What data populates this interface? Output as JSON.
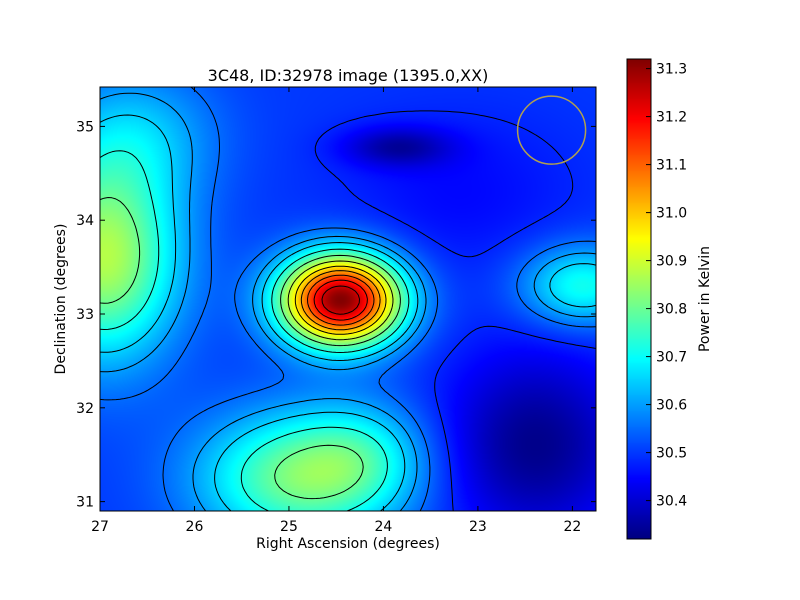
{
  "chart_data": {
    "type": "heatmap",
    "title": "3C48, ID:32978 image (1395.0,XX)",
    "xlabel": "Right Ascension (degrees)",
    "ylabel": "Declination (degrees)",
    "colorbar_label": "Power in Kelvin",
    "xlim": [
      27.0,
      21.75
    ],
    "ylim": [
      30.9,
      35.42
    ],
    "x_ticks": [
      {
        "value": 27,
        "label": "27"
      },
      {
        "value": 26,
        "label": "26"
      },
      {
        "value": 25,
        "label": "25"
      },
      {
        "value": 24,
        "label": "24"
      },
      {
        "value": 23,
        "label": "23"
      },
      {
        "value": 22,
        "label": "22"
      }
    ],
    "y_ticks": [
      {
        "value": 31,
        "label": "31"
      },
      {
        "value": 32,
        "label": "32"
      },
      {
        "value": 33,
        "label": "33"
      },
      {
        "value": 34,
        "label": "34"
      },
      {
        "value": 35,
        "label": "35"
      }
    ],
    "colorbar_range": [
      30.32,
      31.32
    ],
    "colorbar_ticks": [
      {
        "value": 30.4,
        "label": "30.4"
      },
      {
        "value": 30.5,
        "label": "30.5"
      },
      {
        "value": 30.6,
        "label": "30.6"
      },
      {
        "value": 30.7,
        "label": "30.7"
      },
      {
        "value": 30.8,
        "label": "30.8"
      },
      {
        "value": 30.9,
        "label": "30.9"
      },
      {
        "value": 31.0,
        "label": "31.0"
      },
      {
        "value": 31.1,
        "label": "31.1"
      },
      {
        "value": 31.2,
        "label": "31.2"
      },
      {
        "value": 31.3,
        "label": "31.3"
      }
    ],
    "colormap": "jet",
    "background_level": 30.5,
    "features": [
      {
        "name": "peak",
        "ra": 24.45,
        "dec": 33.15,
        "amplitude": 0.82,
        "sigma_ra": 0.45,
        "sigma_dec": 0.34
      },
      {
        "name": "west-lobe",
        "ra": 26.95,
        "dec": 33.6,
        "amplitude": 0.37,
        "sigma_ra": 0.55,
        "sigma_dec": 0.75
      },
      {
        "name": "south-lobe",
        "ra": 24.9,
        "dec": 31.25,
        "amplitude": 0.3,
        "sigma_ra": 0.75,
        "sigma_dec": 0.5
      },
      {
        "name": "south-lobe-2",
        "ra": 24.2,
        "dec": 31.5,
        "amplitude": 0.12,
        "sigma_ra": 0.5,
        "sigma_dec": 0.4
      },
      {
        "name": "east-knot",
        "ra": 21.9,
        "dec": 33.3,
        "amplitude": 0.22,
        "sigma_ra": 0.45,
        "sigma_dec": 0.3
      },
      {
        "name": "north-bridge",
        "ra": 26.6,
        "dec": 34.9,
        "amplitude": 0.12,
        "sigma_ra": 0.6,
        "sigma_dec": 0.5
      },
      {
        "name": "dip-north",
        "ra": 23.85,
        "dec": 34.78,
        "amplitude": -0.13,
        "sigma_ra": 0.4,
        "sigma_dec": 0.15
      },
      {
        "name": "dip-southeast",
        "ra": 22.4,
        "dec": 31.6,
        "amplitude": -0.17,
        "sigma_ra": 0.7,
        "sigma_dec": 0.7
      },
      {
        "name": "dip-center-north",
        "ra": 23.2,
        "dec": 34.3,
        "amplitude": -0.05,
        "sigma_ra": 0.9,
        "sigma_dec": 0.6
      }
    ],
    "contour_levels": [
      30.48,
      30.55,
      30.6,
      30.65,
      30.72,
      30.8,
      30.88,
      30.96,
      31.03,
      31.1,
      31.17,
      31.24
    ],
    "beam": {
      "ra": 22.22,
      "dec": 34.96,
      "radius_deg": 0.36,
      "color": "#b0a050"
    },
    "grid": false
  }
}
